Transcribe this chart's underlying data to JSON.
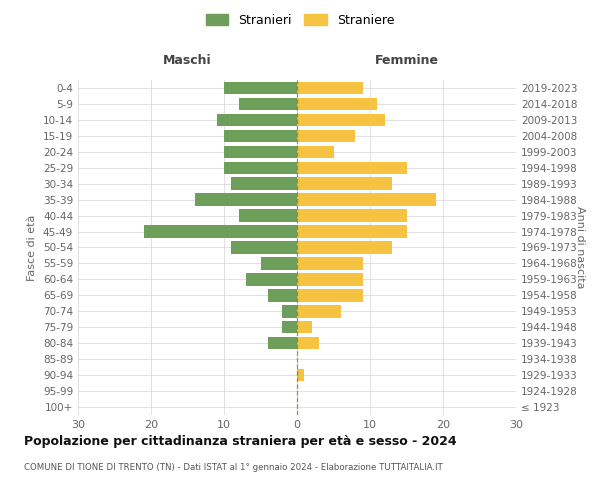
{
  "age_groups": [
    "100+",
    "95-99",
    "90-94",
    "85-89",
    "80-84",
    "75-79",
    "70-74",
    "65-69",
    "60-64",
    "55-59",
    "50-54",
    "45-49",
    "40-44",
    "35-39",
    "30-34",
    "25-29",
    "20-24",
    "15-19",
    "10-14",
    "5-9",
    "0-4"
  ],
  "birth_years": [
    "≤ 1923",
    "1924-1928",
    "1929-1933",
    "1934-1938",
    "1939-1943",
    "1944-1948",
    "1949-1953",
    "1954-1958",
    "1959-1963",
    "1964-1968",
    "1969-1973",
    "1974-1978",
    "1979-1983",
    "1984-1988",
    "1989-1993",
    "1994-1998",
    "1999-2003",
    "2004-2008",
    "2009-2013",
    "2014-2018",
    "2019-2023"
  ],
  "males": [
    0,
    0,
    0,
    0,
    4,
    2,
    2,
    4,
    7,
    5,
    9,
    21,
    8,
    14,
    9,
    10,
    10,
    10,
    11,
    8,
    10
  ],
  "females": [
    0,
    0,
    1,
    0,
    3,
    2,
    6,
    9,
    9,
    9,
    13,
    15,
    15,
    19,
    13,
    15,
    5,
    8,
    12,
    11,
    9
  ],
  "male_color": "#6d9e5a",
  "female_color": "#f5c242",
  "title": "Popolazione per cittadinanza straniera per età e sesso - 2024",
  "subtitle": "COMUNE DI TIONE DI TRENTO (TN) - Dati ISTAT al 1° gennaio 2024 - Elaborazione TUTTAITALIA.IT",
  "xlabel_left": "Maschi",
  "xlabel_right": "Femmine",
  "ylabel_left": "Fasce di età",
  "ylabel_right": "Anni di nascita",
  "legend_male": "Stranieri",
  "legend_female": "Straniere",
  "xlim": 30,
  "background_color": "#ffffff",
  "grid_color": "#d5d5d5"
}
